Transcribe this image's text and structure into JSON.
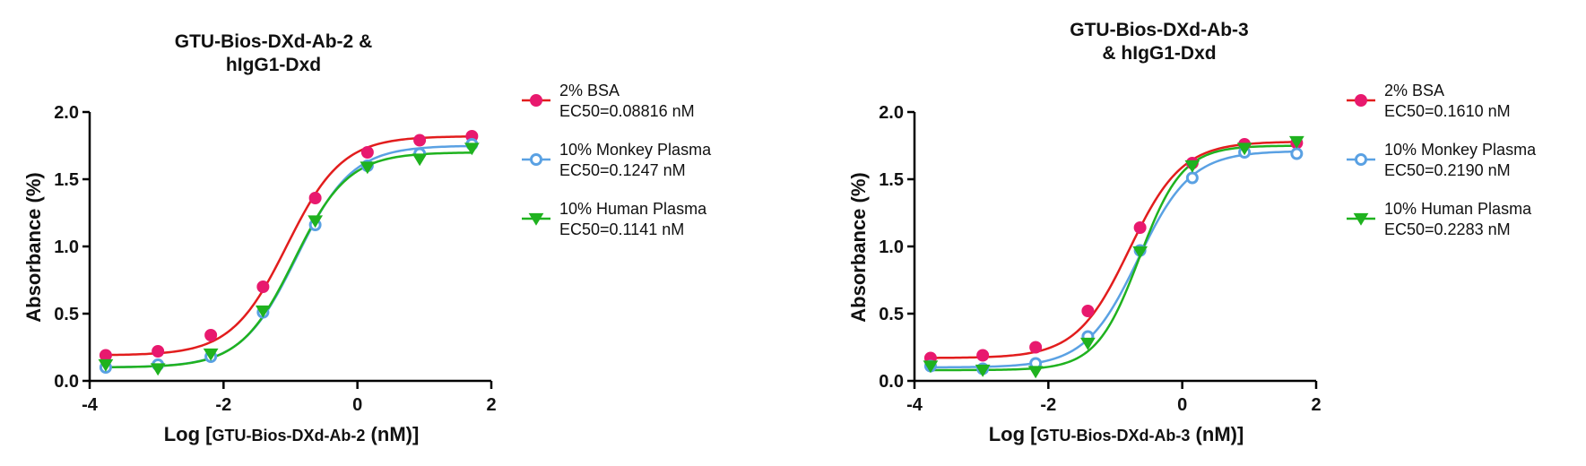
{
  "chart_data": [
    {
      "type": "line",
      "title_lines": [
        "GTU-Bios-DXd-Ab-2 &",
        "hIgG1-Dxd"
      ],
      "xlabel_prefix": "Log [",
      "xlabel_small": "GTU-Bios-DXd-Ab-2",
      "xlabel_suffix": " (nM)]",
      "ylabel": "Absorbance (%)",
      "xlim": [
        -4,
        2
      ],
      "ylim": [
        0,
        2
      ],
      "xticks": [
        "-4",
        "-2",
        "0",
        "2"
      ],
      "yticks": [
        "0.0",
        "0.5",
        "1.0",
        "1.5",
        "2.0"
      ],
      "legend_position": "right",
      "series": [
        {
          "name": "2% BSA",
          "ec50_text": "EC50=0.08816 nM",
          "marker": "circle-filled",
          "color": "#e8196e",
          "line_color": "#e21d1d",
          "x": [
            -3.76,
            -2.98,
            -2.19,
            -1.41,
            -0.63,
            0.15,
            0.93,
            1.71
          ],
          "y": [
            0.19,
            0.22,
            0.34,
            0.7,
            1.36,
            1.7,
            1.79,
            1.82
          ],
          "fit": {
            "bottom": 0.19,
            "top": 1.82,
            "log_ec50": -1.055,
            "hill": 1.05
          }
        },
        {
          "name": "10% Monkey Plasma",
          "ec50_text": "EC50=0.1247  nM",
          "marker": "circle-open",
          "color": "#5aa1e3",
          "line_color": "#5aa1e3",
          "x": [
            -3.76,
            -2.98,
            -2.19,
            -1.41,
            -0.63,
            0.15,
            0.93,
            1.71
          ],
          "y": [
            0.1,
            0.12,
            0.18,
            0.51,
            1.16,
            1.6,
            1.69,
            1.76
          ],
          "fit": {
            "bottom": 0.1,
            "top": 1.75,
            "log_ec50": -0.904,
            "hill": 1.05
          }
        },
        {
          "name": "10% Human Plasma",
          "ec50_text": "EC50=0.1141  nM",
          "marker": "triangle-down",
          "color": "#1fb21f",
          "line_color": "#1fb21f",
          "x": [
            -3.76,
            -2.98,
            -2.19,
            -1.41,
            -0.63,
            0.15,
            0.93,
            1.71
          ],
          "y": [
            0.12,
            0.09,
            0.2,
            0.52,
            1.19,
            1.59,
            1.65,
            1.73
          ],
          "fit": {
            "bottom": 0.1,
            "top": 1.7,
            "log_ec50": -0.943,
            "hill": 1.08
          }
        }
      ]
    },
    {
      "type": "line",
      "title_lines": [
        "GTU-Bios-DXd-Ab-3",
        "& hIgG1-Dxd"
      ],
      "xlabel_prefix": "Log [",
      "xlabel_small": "GTU-Bios-DXd-Ab-3",
      "xlabel_suffix": " (nM)]",
      "ylabel": "Absorbance (%)",
      "xlim": [
        -4,
        2
      ],
      "ylim": [
        0,
        2
      ],
      "xticks": [
        "-4",
        "-2",
        "0",
        "2"
      ],
      "yticks": [
        "0.0",
        "0.5",
        "1.0",
        "1.5",
        "2.0"
      ],
      "legend_position": "right",
      "series": [
        {
          "name": "2% BSA",
          "ec50_text": "EC50=0.1610 nM",
          "marker": "circle-filled",
          "color": "#e8196e",
          "line_color": "#e21d1d",
          "x": [
            -3.76,
            -2.98,
            -2.19,
            -1.41,
            -0.63,
            0.15,
            0.93,
            1.71
          ],
          "y": [
            0.17,
            0.19,
            0.25,
            0.52,
            1.14,
            1.62,
            1.76,
            1.77
          ],
          "fit": {
            "bottom": 0.17,
            "top": 1.78,
            "log_ec50": -0.793,
            "hill": 1.1
          }
        },
        {
          "name": "10% Monkey Plasma",
          "ec50_text": "EC50=0.2190  nM",
          "marker": "circle-open",
          "color": "#5aa1e3",
          "line_color": "#5aa1e3",
          "x": [
            -3.76,
            -2.98,
            -2.19,
            -1.41,
            -0.63,
            0.15,
            0.93,
            1.71
          ],
          "y": [
            0.11,
            0.09,
            0.13,
            0.33,
            0.97,
            1.51,
            1.7,
            1.69
          ],
          "fit": {
            "bottom": 0.1,
            "top": 1.71,
            "log_ec50": -0.66,
            "hill": 1.1
          }
        },
        {
          "name": "10% Human Plasma",
          "ec50_text": "EC50=0.2283  nM",
          "marker": "triangle-down",
          "color": "#1fb21f",
          "line_color": "#1fb21f",
          "x": [
            -3.76,
            -2.98,
            -2.19,
            -1.41,
            -0.63,
            0.15,
            0.93,
            1.71
          ],
          "y": [
            0.11,
            0.08,
            0.07,
            0.28,
            0.96,
            1.6,
            1.73,
            1.78
          ],
          "fit": {
            "bottom": 0.08,
            "top": 1.75,
            "log_ec50": -0.641,
            "hill": 1.35
          }
        }
      ]
    }
  ]
}
